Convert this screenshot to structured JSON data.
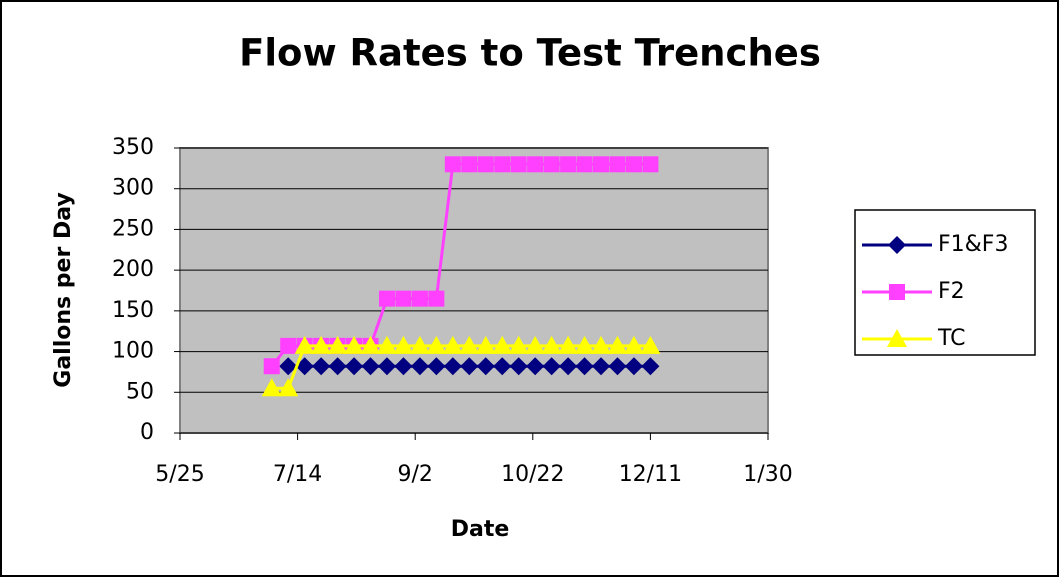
{
  "chart_data": {
    "type": "line",
    "title": "Flow Rates to Test Trenches",
    "x_label": "Date",
    "y_label": "Gallons per Day",
    "x": [
      184,
      191,
      198,
      205,
      212,
      219,
      226,
      233,
      240,
      247,
      254,
      261,
      268,
      275,
      282,
      289,
      296,
      303,
      310,
      317,
      324,
      331,
      338,
      345
    ],
    "series": [
      {
        "name": "F1&F3",
        "color": "#000080",
        "marker": "diamond",
        "values": [
          null,
          82,
          82,
          82,
          82,
          82,
          82,
          82,
          82,
          82,
          82,
          82,
          82,
          82,
          82,
          82,
          82,
          82,
          82,
          82,
          82,
          82,
          82,
          82
        ]
      },
      {
        "name": "F2",
        "color": "#ff40ff",
        "marker": "square",
        "values": [
          82,
          107,
          107,
          107,
          107,
          107,
          107,
          165,
          165,
          165,
          165,
          330,
          330,
          330,
          330,
          330,
          330,
          330,
          330,
          330,
          330,
          330,
          330,
          330
        ]
      },
      {
        "name": "TC",
        "color": "#ffff00",
        "marker": "triangle",
        "values": [
          55,
          55,
          107,
          107,
          107,
          107,
          107,
          107,
          107,
          107,
          107,
          107,
          107,
          107,
          107,
          107,
          107,
          107,
          107,
          107,
          107,
          107,
          107,
          107
        ]
      }
    ],
    "xlim": [
      145,
      395
    ],
    "xticks": [
      {
        "value": 145,
        "label": "5/25"
      },
      {
        "value": 195,
        "label": "7/14"
      },
      {
        "value": 245,
        "label": "9/2"
      },
      {
        "value": 295,
        "label": "10/22"
      },
      {
        "value": 345,
        "label": "12/11"
      },
      {
        "value": 395,
        "label": "1/30"
      }
    ],
    "ylim": [
      0,
      350
    ],
    "yticks": [
      0,
      50,
      100,
      150,
      200,
      250,
      300,
      350
    ],
    "grid": true,
    "legend": "right"
  }
}
